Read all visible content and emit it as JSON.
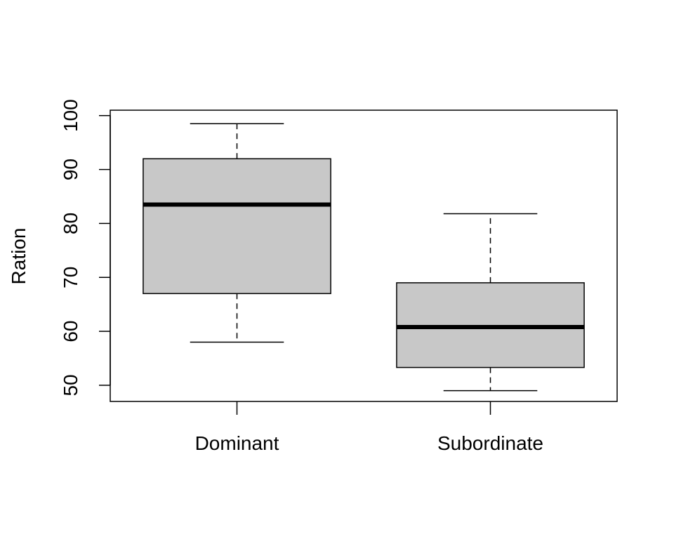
{
  "chart_data": {
    "type": "boxplot",
    "title": "",
    "xlabel": "",
    "ylabel": "Ration",
    "ylim": [
      47,
      101
    ],
    "yticks": [
      50,
      60,
      70,
      80,
      90,
      100
    ],
    "grid": false,
    "legend": "none",
    "categories": [
      "Dominant",
      "Subordinate"
    ],
    "series": [
      {
        "category": "Dominant",
        "whisker_low": 58,
        "q1": 67,
        "median": 83.5,
        "q3": 92,
        "whisker_high": 98.5
      },
      {
        "category": "Subordinate",
        "whisker_low": 49,
        "q1": 53.3,
        "median": 60.8,
        "q3": 69,
        "whisker_high": 81.8
      }
    ],
    "colors": {
      "box_fill": "#c8c8c8",
      "stroke": "#000000"
    }
  }
}
